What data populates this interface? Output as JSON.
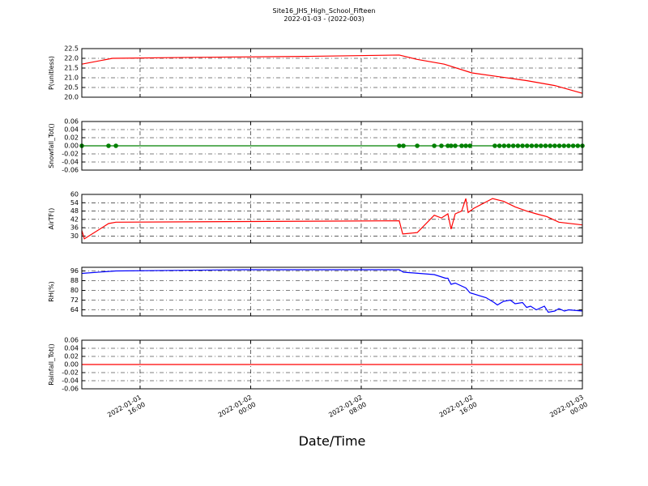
{
  "title": "Site16_JHS_High_School_Fifteen",
  "subtitle": "2022-01-03 - (2022-003)",
  "xaxis": {
    "label": "Date/Time",
    "lim": [
      "2022-01-01 11:47",
      "2022-01-03 00:00"
    ],
    "ticks": [
      {
        "value": "2022-01-01 16:00",
        "label": [
          "2022-01-01",
          "16:00"
        ]
      },
      {
        "value": "2022-01-02 00:00",
        "label": [
          "2022-01-02",
          "00:00"
        ]
      },
      {
        "value": "2022-01-02 08:00",
        "label": [
          "2022-01-02",
          "08:00"
        ]
      },
      {
        "value": "2022-01-02 16:00",
        "label": [
          "2022-01-02",
          "16:00"
        ]
      },
      {
        "value": "2022-01-03 00:00",
        "label": [
          "2022-01-03",
          "00:00"
        ]
      }
    ]
  },
  "chart_data": [
    {
      "type": "line",
      "ylabel": "P(unitless)",
      "ylim": [
        20,
        22.5
      ],
      "grid": true,
      "yticks": [
        {
          "value": 20,
          "label": "20.0"
        },
        20.5,
        {
          "value": 21,
          "label": "21.0"
        },
        21.5,
        {
          "value": 22,
          "label": "22.0"
        },
        22.5
      ],
      "x": [
        "2022-01-01 11:47",
        "2022-01-01 14:00",
        "2022-01-01 20:00",
        "2022-01-02 04:00",
        "2022-01-02 10:45",
        "2022-01-02 12:00",
        "2022-01-02 14:00",
        "2022-01-02 16:00",
        "2022-01-02 18:00",
        "2022-01-02 20:00",
        "2022-01-02 22:00",
        "2022-01-03 00:00"
      ],
      "series": [
        {
          "color": "#ff0000",
          "values": [
            21.7,
            22.0,
            22.05,
            22.1,
            22.17,
            21.95,
            21.7,
            21.25,
            21.05,
            20.85,
            20.6,
            20.2
          ]
        }
      ]
    },
    {
      "type": "line",
      "ylabel": "Snowfall_Tot()",
      "ylim": [
        -0.06,
        0.06
      ],
      "grid": true,
      "yticks": [
        -0.06,
        -0.04,
        -0.02,
        {
          "value": 0,
          "label": "0.00"
        },
        0.02,
        0.04,
        0.06
      ],
      "x": [
        "2022-01-01 11:47",
        "2022-01-01 13:43",
        "2022-01-01 14:15",
        "2022-01-02 10:45",
        "2022-01-02 11:03",
        "2022-01-02 12:03",
        "2022-01-02 13:17",
        "2022-01-02 13:48",
        "2022-01-02 14:16",
        "2022-01-02 14:30",
        "2022-01-02 14:48",
        "2022-01-02 15:16",
        "2022-01-02 15:34",
        "2022-01-02 15:52",
        "2022-01-02 17:40",
        "2022-01-02 18:00",
        "2022-01-02 18:20",
        "2022-01-02 18:40",
        "2022-01-02 19:00",
        "2022-01-02 19:20",
        "2022-01-02 19:40",
        "2022-01-02 20:00",
        "2022-01-02 20:20",
        "2022-01-02 20:40",
        "2022-01-02 21:00",
        "2022-01-02 21:20",
        "2022-01-02 21:40",
        "2022-01-02 22:00",
        "2022-01-02 22:20",
        "2022-01-02 22:40",
        "2022-01-02 23:00",
        "2022-01-02 23:20",
        "2022-01-02 23:40",
        "2022-01-03 00:00"
      ],
      "series": [
        {
          "color": "#008000",
          "markers": true,
          "values": [
            0,
            0,
            0,
            0,
            0,
            0,
            0,
            0,
            0,
            0,
            0,
            0,
            0,
            0,
            0,
            0,
            0,
            0,
            0,
            0,
            0,
            0,
            0,
            0,
            0,
            0,
            0,
            0,
            0,
            0,
            0,
            0,
            0,
            0
          ]
        }
      ]
    },
    {
      "type": "line",
      "ylabel": "AirTF()",
      "ylim": [
        25,
        60
      ],
      "grid": true,
      "yticks": [
        30,
        36,
        42,
        48,
        54,
        60
      ],
      "x": [
        "2022-01-01 11:47",
        "2022-01-01 11:58",
        "2022-01-01 13:43",
        "2022-01-01 14:15",
        "2022-01-02 10:45",
        "2022-01-02 11:00",
        "2022-01-02 12:03",
        "2022-01-02 13:17",
        "2022-01-02 13:48",
        "2022-01-02 14:16",
        "2022-01-02 14:30",
        "2022-01-02 14:48",
        "2022-01-02 15:16",
        "2022-01-02 15:34",
        "2022-01-02 15:44",
        "2022-01-02 16:09",
        "2022-01-02 17:30",
        "2022-01-02 18:18",
        "2022-01-02 19:08",
        "2022-01-02 19:58",
        "2022-01-02 20:40",
        "2022-01-02 21:26",
        "2022-01-02 22:18",
        "2022-01-03 00:00"
      ],
      "series": [
        {
          "color": "#ff0000",
          "values": [
            34,
            28,
            39,
            40,
            41,
            31.5,
            32.5,
            45,
            43,
            46,
            35,
            46,
            48,
            57,
            47,
            50,
            57,
            55,
            51,
            48,
            46,
            44,
            40,
            38
          ]
        }
      ]
    },
    {
      "type": "line",
      "ylabel": "RH(%)",
      "ylim": [
        59,
        99
      ],
      "grid": true,
      "yticks": [
        64,
        72,
        80,
        88,
        96
      ],
      "x": [
        "2022-01-01 11:47",
        "2022-01-01 14:15",
        "2022-01-01 23:27",
        "2022-01-02 10:45",
        "2022-01-02 11:03",
        "2022-01-02 13:17",
        "2022-01-02 14:06",
        "2022-01-02 14:16",
        "2022-01-02 14:30",
        "2022-01-02 14:48",
        "2022-01-02 15:34",
        "2022-01-02 15:52",
        "2022-01-02 17:02",
        "2022-01-02 17:37",
        "2022-01-02 17:51",
        "2022-01-02 18:18",
        "2022-01-02 18:47",
        "2022-01-02 19:08",
        "2022-01-02 19:40",
        "2022-01-02 19:58",
        "2022-01-02 20:15",
        "2022-01-02 20:40",
        "2022-01-02 21:15",
        "2022-01-02 21:32",
        "2022-01-02 22:00",
        "2022-01-02 22:18",
        "2022-01-02 22:42",
        "2022-01-02 23:00",
        "2022-01-03 00:00"
      ],
      "series": [
        {
          "color": "#0000ff",
          "values": [
            94,
            96,
            97,
            97,
            95,
            93,
            90,
            90,
            85,
            86,
            82,
            78,
            74,
            70,
            68,
            71,
            72,
            69,
            70,
            66,
            67,
            64,
            67,
            62,
            63,
            65,
            63,
            64,
            63
          ]
        }
      ]
    },
    {
      "type": "line",
      "ylabel": "Rainfall_Tot()",
      "ylim": [
        -0.06,
        0.06
      ],
      "grid": true,
      "yticks": [
        -0.06,
        -0.04,
        -0.02,
        {
          "value": 0,
          "label": "0.00"
        },
        0.02,
        0.04,
        0.06
      ],
      "x": [
        "2022-01-01 11:47",
        "2022-01-03 00:00"
      ],
      "series": [
        {
          "color": "#ff0000",
          "values": [
            0,
            0
          ]
        }
      ]
    }
  ]
}
